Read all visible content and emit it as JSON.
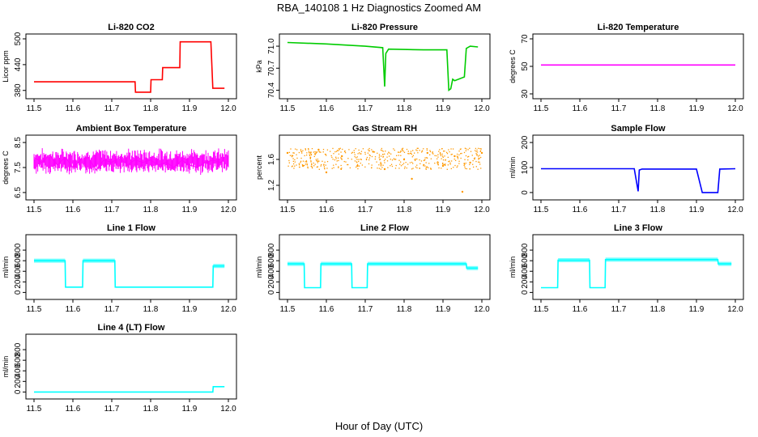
{
  "figure": {
    "title": "RBA_140108  1 Hz Diagnostics Zoomed AM",
    "xlabel": "Hour of Day (UTC)"
  },
  "chart_data": [
    {
      "type": "line",
      "title": "Li-820 CO2",
      "ylabel": "Licor ppm",
      "color": "#ff0000",
      "xlim": [
        11.5,
        12.0
      ],
      "ylim": [
        372,
        500
      ],
      "yticks": [
        "380",
        "440",
        "500"
      ],
      "xticks": [
        "11.5",
        "11.6",
        "11.7",
        "11.8",
        "11.9",
        "12.0"
      ],
      "x": [
        11.5,
        11.76,
        11.761,
        11.8,
        11.801,
        11.83,
        11.831,
        11.875,
        11.876,
        11.955,
        11.96,
        11.99
      ],
      "y": [
        400,
        400,
        376,
        376,
        405,
        405,
        433,
        433,
        493,
        493,
        385,
        385
      ]
    },
    {
      "type": "line",
      "title": "Li-820 Pressure",
      "ylabel": "kPa",
      "color": "#00cc00",
      "xlim": [
        11.5,
        12.0
      ],
      "ylim": [
        70.35,
        71.1
      ],
      "yticks": [
        "70.4",
        "70.7",
        "71.0"
      ],
      "xticks": [
        "11.5",
        "11.6",
        "11.7",
        "11.8",
        "11.9",
        "12.0"
      ],
      "x": [
        11.5,
        11.6,
        11.7,
        11.745,
        11.75,
        11.753,
        11.76,
        11.85,
        11.91,
        11.915,
        11.92,
        11.925,
        11.93,
        11.955,
        11.96,
        11.97,
        11.99
      ],
      "y": [
        71.05,
        71.03,
        71.0,
        70.98,
        70.45,
        70.9,
        70.96,
        70.95,
        70.95,
        70.4,
        70.42,
        70.55,
        70.53,
        70.58,
        70.97,
        71.0,
        70.99
      ]
    },
    {
      "type": "line",
      "title": "Li-820 Temperature",
      "ylabel": "degrees C",
      "color": "#ff00ff",
      "xlim": [
        11.5,
        12.0
      ],
      "ylim": [
        30,
        70
      ],
      "yticks": [
        "30",
        "50",
        "70"
      ],
      "xticks": [
        "11.5",
        "11.6",
        "11.7",
        "11.8",
        "11.9",
        "12.0"
      ],
      "x": [
        11.5,
        12.0
      ],
      "y": [
        51,
        51
      ]
    },
    {
      "type": "line",
      "title": "Ambient Box Temperature",
      "ylabel": "degrees C",
      "color": "#ff00ff",
      "xlim": [
        11.5,
        12.0
      ],
      "ylim": [
        6.4,
        8.6
      ],
      "yticks": [
        "6.5",
        "7.5",
        "8.5"
      ],
      "xticks": [
        "11.5",
        "11.6",
        "11.7",
        "11.8",
        "11.9",
        "12.0"
      ],
      "x": [
        11.5,
        11.52,
        11.54,
        11.56,
        11.58,
        11.6,
        11.62,
        11.64,
        11.66,
        11.68,
        11.7,
        11.72,
        11.74,
        11.76,
        11.78,
        11.8,
        11.82,
        11.84,
        11.86,
        11.88,
        11.9,
        11.92,
        11.94,
        11.96,
        11.98,
        11.99
      ],
      "y": [
        7.9,
        7.7,
        8.0,
        7.6,
        7.9,
        7.5,
        7.8,
        7.9,
        7.4,
        7.8,
        7.7,
        7.9,
        7.6,
        7.8,
        7.7,
        7.8,
        7.6,
        7.7,
        7.5,
        7.8,
        7.6,
        7.5,
        7.7,
        7.8,
        7.7,
        7.9
      ]
    },
    {
      "type": "scatter",
      "title": "Gas Stream RH",
      "ylabel": "percent",
      "color": "#ff9900",
      "xlim": [
        11.5,
        12.0
      ],
      "ylim": [
        1.05,
        1.9
      ],
      "yticks": [
        "1.2",
        "1.6"
      ],
      "xticks": [
        "11.5",
        "11.6",
        "11.7",
        "11.8",
        "11.9",
        "12.0"
      ],
      "band_low": 1.45,
      "band_high": 1.78,
      "x": [
        11.5,
        11.54,
        11.58,
        11.6,
        11.64,
        11.68,
        11.72,
        11.75,
        11.8,
        11.82,
        11.86,
        11.9,
        11.93,
        11.95,
        11.97,
        12.0
      ],
      "y": [
        1.7,
        1.5,
        1.75,
        1.4,
        1.65,
        1.5,
        1.72,
        1.45,
        1.6,
        1.3,
        1.7,
        1.5,
        1.65,
        1.1,
        1.55,
        1.7
      ]
    },
    {
      "type": "line",
      "title": "Sample Flow",
      "ylabel": "ml/min",
      "color": "#0000ff",
      "xlim": [
        11.5,
        12.0
      ],
      "ylim": [
        -10,
        210
      ],
      "yticks": [
        "0",
        "100",
        "200"
      ],
      "xticks": [
        "11.5",
        "11.6",
        "11.7",
        "11.8",
        "11.9",
        "12.0"
      ],
      "x": [
        11.5,
        11.74,
        11.75,
        11.753,
        11.76,
        11.9,
        11.915,
        11.955,
        11.96,
        12.0
      ],
      "y": [
        95,
        95,
        5,
        90,
        94,
        94,
        0,
        0,
        94,
        95
      ]
    },
    {
      "type": "line",
      "title": "Line 1 Flow",
      "ylabel": "ml/min",
      "color": "#00ffff",
      "xlim": [
        11.5,
        12.0
      ],
      "ylim": [
        -40,
        1000
      ],
      "yticks": [
        "0",
        "200",
        "400",
        "600",
        "800"
      ],
      "xticks": [
        "11.5",
        "11.6",
        "11.7",
        "11.8",
        "11.9",
        "12.0"
      ],
      "x": [
        11.5,
        11.58,
        11.581,
        11.625,
        11.626,
        11.708,
        11.709,
        11.96,
        11.961,
        11.99
      ],
      "y": [
        600,
        600,
        100,
        100,
        600,
        600,
        100,
        100,
        500,
        500
      ]
    },
    {
      "type": "line",
      "title": "Line 2 Flow",
      "ylabel": "ml/min",
      "color": "#00ffff",
      "xlim": [
        11.5,
        12.0
      ],
      "ylim": [
        -40,
        1000
      ],
      "yticks": [
        "0",
        "200",
        "400",
        "600",
        "800"
      ],
      "xticks": [
        "11.5",
        "11.6",
        "11.7",
        "11.8",
        "11.9",
        "12.0"
      ],
      "x": [
        11.5,
        11.543,
        11.544,
        11.585,
        11.586,
        11.665,
        11.666,
        11.705,
        11.706,
        11.96,
        11.961,
        11.99
      ],
      "y": [
        540,
        540,
        90,
        90,
        540,
        540,
        90,
        90,
        540,
        540,
        460,
        460
      ]
    },
    {
      "type": "line",
      "title": "Line 3 Flow",
      "ylabel": "ml/min",
      "color": "#00ffff",
      "xlim": [
        11.5,
        12.0
      ],
      "ylim": [
        -40,
        1000
      ],
      "yticks": [
        "0",
        "200",
        "400",
        "600",
        "800"
      ],
      "xticks": [
        "11.5",
        "11.6",
        "11.7",
        "11.8",
        "11.9",
        "12.0"
      ],
      "x": [
        11.5,
        11.543,
        11.544,
        11.625,
        11.626,
        11.665,
        11.666,
        11.955,
        11.956,
        11.99
      ],
      "y": [
        90,
        90,
        610,
        610,
        90,
        90,
        620,
        620,
        540,
        540
      ]
    },
    {
      "type": "line",
      "title": "Line 4 (LT) Flow",
      "ylabel": "ml/min",
      "color": "#00ffff",
      "xlim": [
        11.5,
        12.0
      ],
      "ylim": [
        -40,
        1000
      ],
      "yticks": [
        "0",
        "200",
        "400",
        "600",
        "800"
      ],
      "xticks": [
        "11.5",
        "11.6",
        "11.7",
        "11.8",
        "11.9",
        "12.0"
      ],
      "x": [
        11.5,
        11.96,
        11.961,
        11.99
      ],
      "y": [
        0,
        0,
        100,
        100
      ]
    }
  ]
}
